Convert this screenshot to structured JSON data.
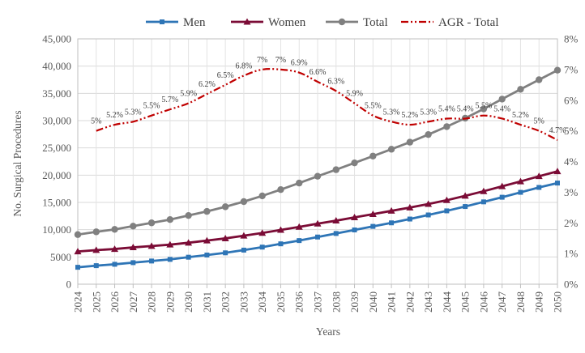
{
  "chart_data": {
    "type": "line",
    "title": "",
    "xlabel": "Years",
    "ylabel": "No. Surgical Procedures",
    "ylim": [
      0,
      45000
    ],
    "y_ticks": [
      0,
      5000,
      10000,
      15000,
      20000,
      25000,
      30000,
      35000,
      40000,
      45000
    ],
    "y_tick_labels": [
      "0",
      "5000",
      "10,000",
      "15,000",
      "20,000",
      "25,000",
      "30,000",
      "35,000",
      "40,000",
      "45,000"
    ],
    "y2lim": [
      0,
      8
    ],
    "y2_ticks": [
      0,
      1,
      2,
      3,
      4,
      5,
      6,
      7,
      8
    ],
    "y2_tick_labels": [
      "0%",
      "1%",
      "2%",
      "3%",
      "4%",
      "5%",
      "6%",
      "7%",
      "8%"
    ],
    "grid": true,
    "legend_position": "top",
    "categories": [
      "2024",
      "2025",
      "2026",
      "2027",
      "2028",
      "2029",
      "2030",
      "2031",
      "2032",
      "2033",
      "2034",
      "2035",
      "2036",
      "2037",
      "2038",
      "2039",
      "2040",
      "2041",
      "2042",
      "2043",
      "2044",
      "2045",
      "2046",
      "2047",
      "2048",
      "2049",
      "2050"
    ],
    "series": [
      {
        "name": "Men",
        "axis": "left",
        "color": "#2E75B6",
        "marker": "square",
        "values": [
          3100,
          3400,
          3650,
          3950,
          4250,
          4550,
          4950,
          5350,
          5750,
          6250,
          6800,
          7400,
          8000,
          8650,
          9300,
          9950,
          10600,
          11250,
          11950,
          12700,
          13450,
          14250,
          15100,
          15950,
          16850,
          17750,
          18550
        ]
      },
      {
        "name": "Women",
        "axis": "left",
        "color": "#7B0C36",
        "marker": "triangle",
        "values": [
          6000,
          6250,
          6450,
          6750,
          7000,
          7250,
          7600,
          8000,
          8400,
          8900,
          9400,
          9950,
          10500,
          11100,
          11650,
          12250,
          12850,
          13450,
          14050,
          14700,
          15400,
          16200,
          17050,
          17950,
          18850,
          19800,
          20700
        ]
      },
      {
        "name": "Total",
        "axis": "left",
        "color": "#808080",
        "marker": "circle",
        "values": [
          9100,
          9600,
          10050,
          10650,
          11250,
          11850,
          12600,
          13350,
          14200,
          15150,
          16200,
          17350,
          18550,
          19800,
          21000,
          22250,
          23500,
          24750,
          26050,
          27450,
          28900,
          30450,
          32150,
          33950,
          35750,
          37500,
          39250
        ]
      },
      {
        "name": "AGR - Total",
        "axis": "right",
        "color": "#C00000",
        "marker": "none",
        "dash": "dash-dot-dot",
        "x": [
          "2025",
          "2026",
          "2027",
          "2028",
          "2029",
          "2030",
          "2031",
          "2032",
          "2033",
          "2034",
          "2035",
          "2036",
          "2037",
          "2038",
          "2039",
          "2040",
          "2041",
          "2042",
          "2043",
          "2044",
          "2045",
          "2046",
          "2047",
          "2048",
          "2049",
          "2050"
        ],
        "values": [
          5.0,
          5.2,
          5.3,
          5.5,
          5.7,
          5.9,
          6.2,
          6.5,
          6.8,
          7.0,
          7.0,
          6.9,
          6.6,
          6.3,
          5.9,
          5.5,
          5.3,
          5.2,
          5.3,
          5.4,
          5.4,
          5.5,
          5.4,
          5.2,
          5.0,
          4.7
        ],
        "labels": [
          "5%",
          "5.2%",
          "5.3%",
          "5.5%",
          "5.7%",
          "5.9%",
          "6.2%",
          "6.5%",
          "6.8%",
          "7%",
          "7%",
          "6.9%",
          "6.6%",
          "6.3%",
          "5.9%",
          "5.5%",
          "5.3%",
          "5.2%",
          "5.3%",
          "5.4%",
          "5.4%",
          "5.5%",
          "5.4%",
          "5.2%",
          "5%",
          "4.7%"
        ]
      }
    ]
  }
}
